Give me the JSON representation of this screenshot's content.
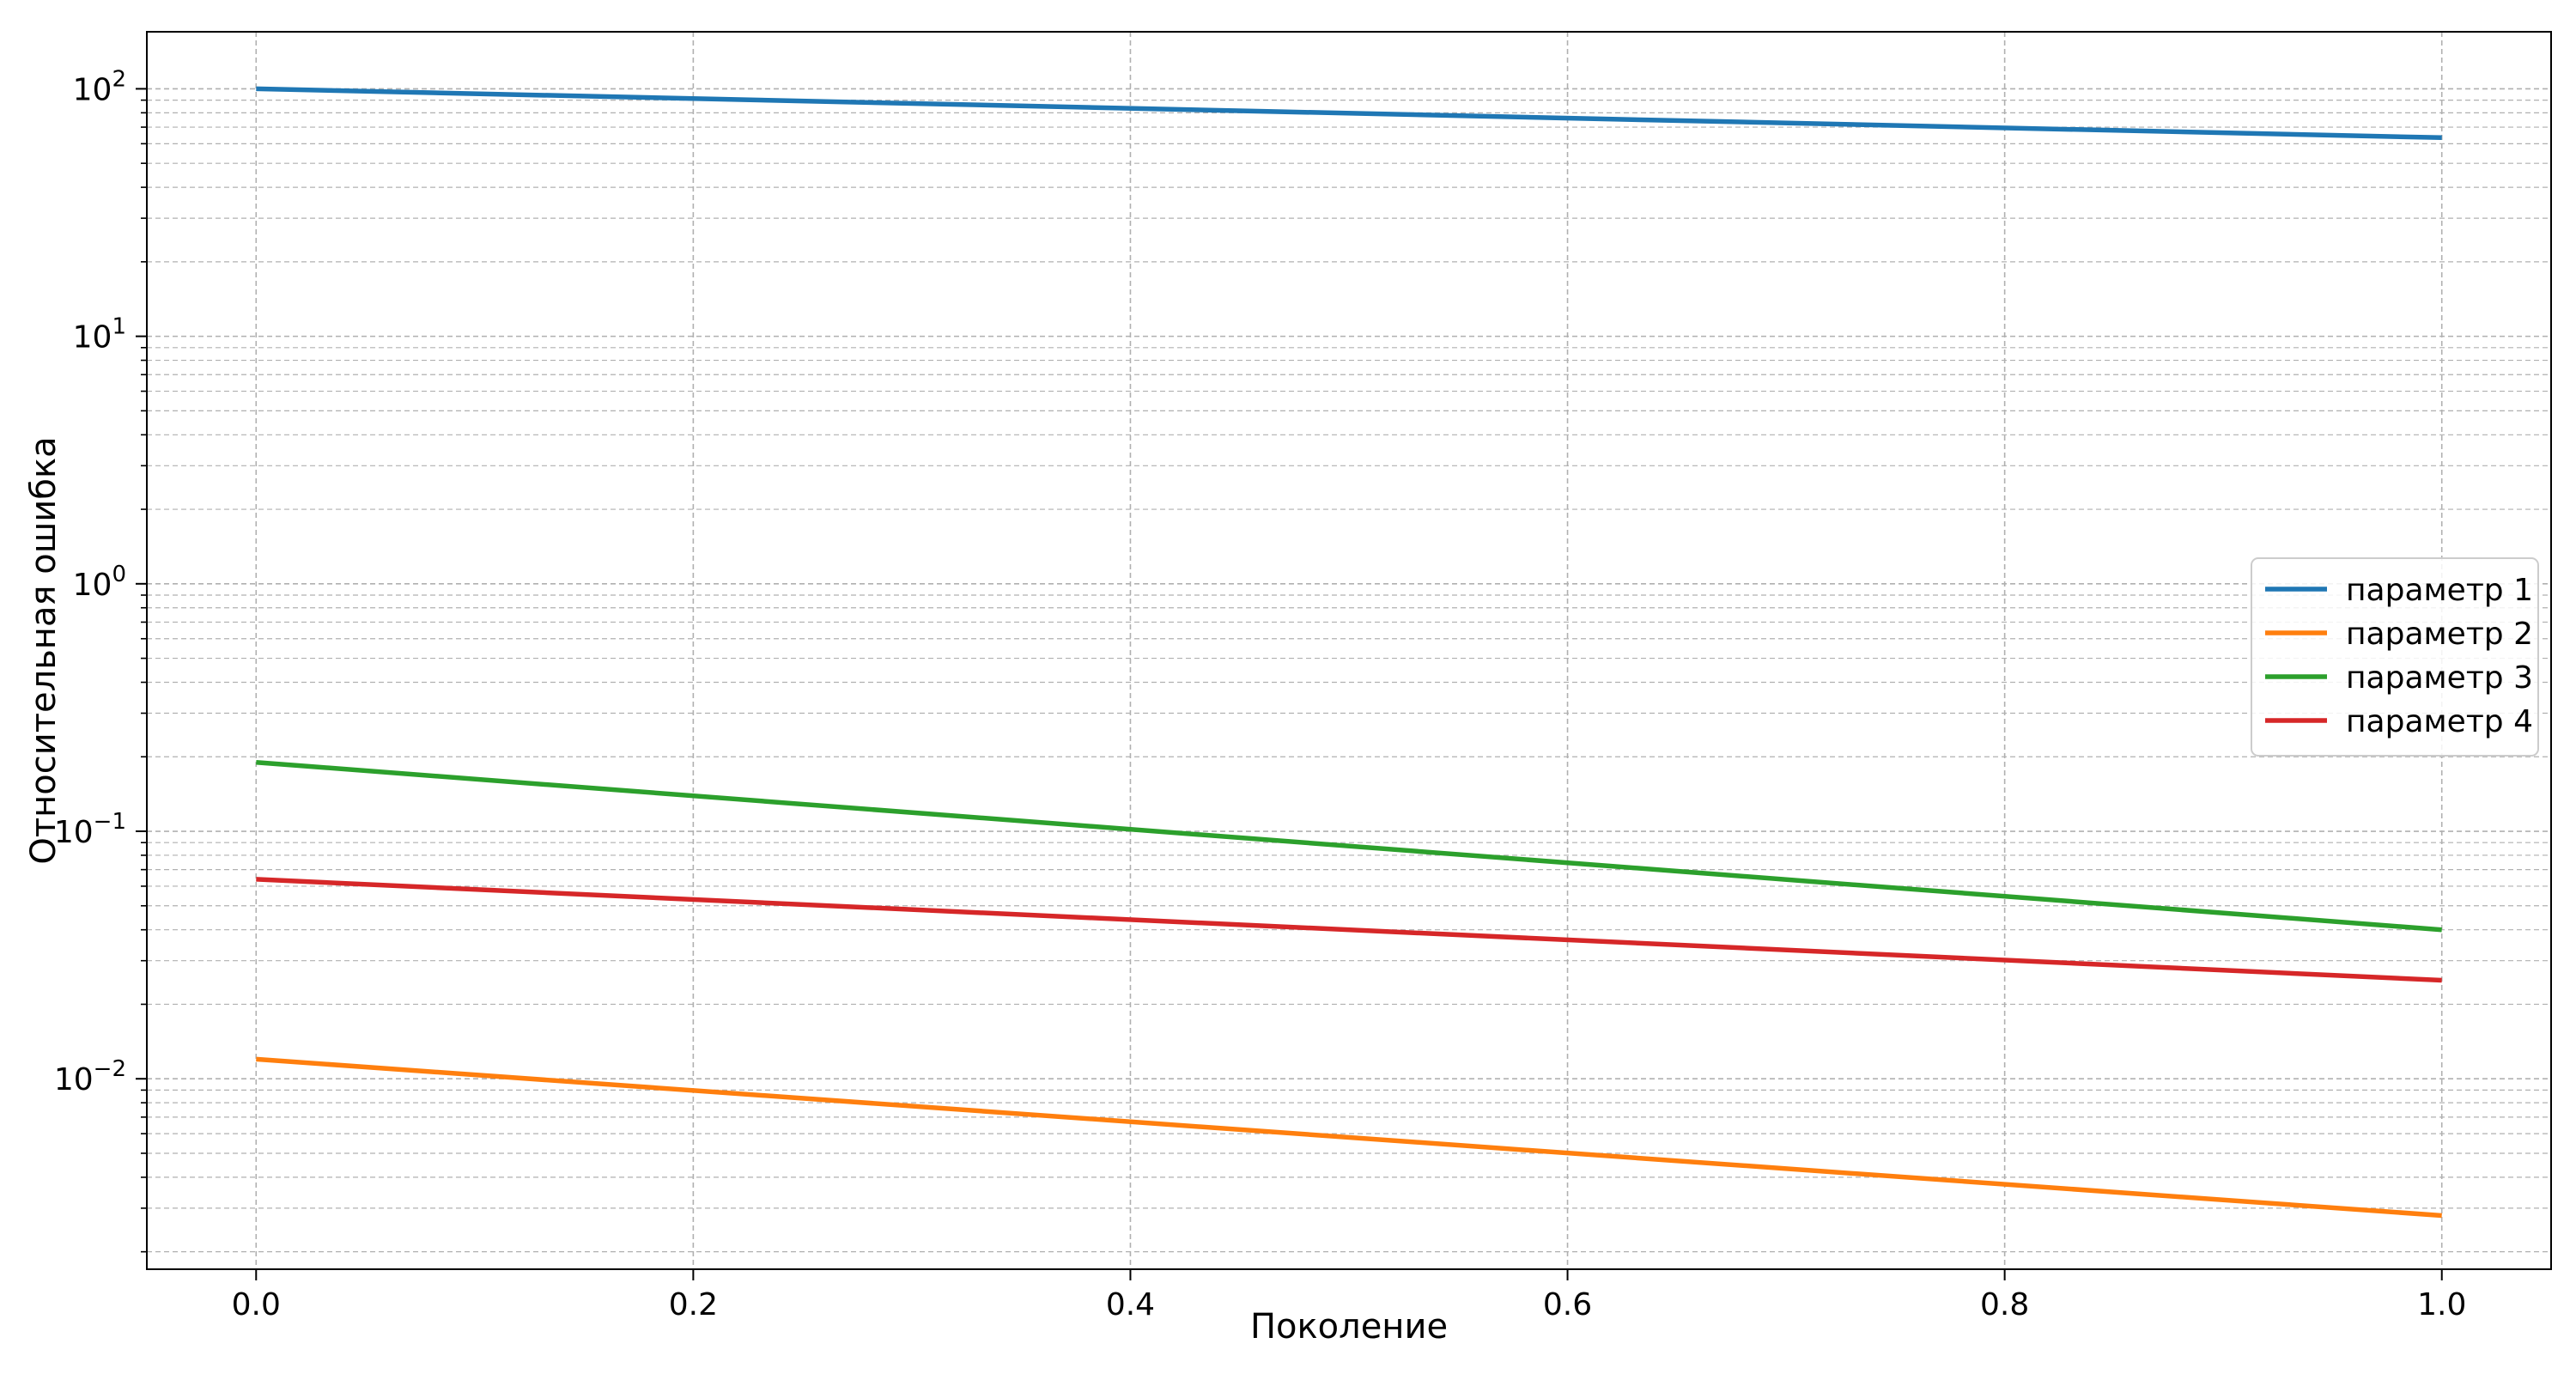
{
  "chart_data": {
    "type": "line",
    "title": "",
    "xlabel": "Поколение",
    "ylabel": "Относительная ошибка",
    "xlim": [
      -0.05,
      1.05
    ],
    "ylim": [
      0.0017,
      170
    ],
    "yscale": "log",
    "grid": true,
    "legend_position": "center-right",
    "x_ticks": [
      0.0,
      0.2,
      0.4,
      0.6,
      0.8,
      1.0
    ],
    "x_tick_labels": [
      "0.0",
      "0.2",
      "0.4",
      "0.6",
      "0.8",
      "1.0"
    ],
    "y_ticks": [
      0.01,
      0.1,
      1,
      10,
      100
    ],
    "y_tick_labels": [
      {
        "base": "10",
        "exp": "−2"
      },
      {
        "base": "10",
        "exp": "−1"
      },
      {
        "base": "10",
        "exp": "0"
      },
      {
        "base": "10",
        "exp": "1"
      },
      {
        "base": "10",
        "exp": "2"
      }
    ],
    "series": [
      {
        "name": "параметр 1",
        "color": "#1f77b4",
        "x": [
          0.0,
          1.0
        ],
        "y": [
          100,
          63.5
        ]
      },
      {
        "name": "параметр 2",
        "color": "#ff7f0e",
        "x": [
          0.0,
          1.0
        ],
        "y": [
          0.012,
          0.0028
        ]
      },
      {
        "name": "параметр 3",
        "color": "#2ca02c",
        "x": [
          0.0,
          1.0
        ],
        "y": [
          0.19,
          0.04
        ]
      },
      {
        "name": "параметр 4",
        "color": "#d62728",
        "x": [
          0.0,
          1.0
        ],
        "y": [
          0.064,
          0.025
        ]
      }
    ]
  }
}
